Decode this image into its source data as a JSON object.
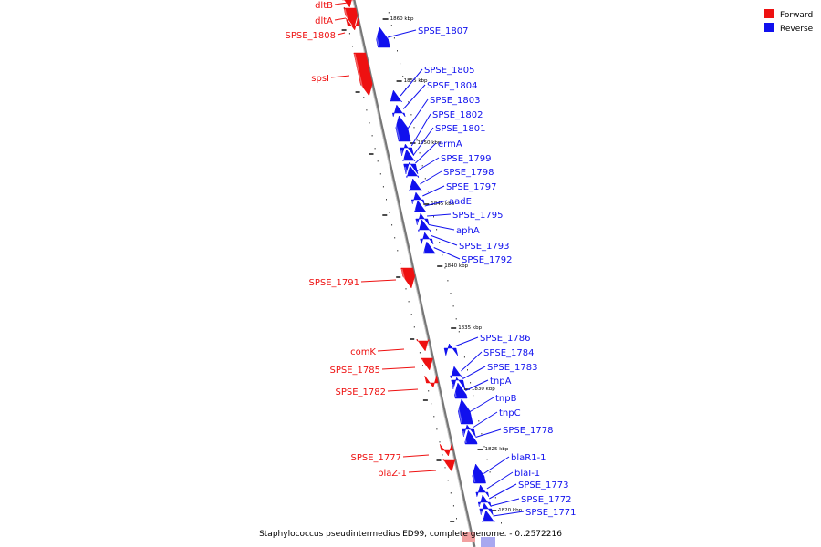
{
  "legend": {
    "forward_label": "Forward",
    "reverse_label": "Reverse",
    "forward_color": "#ee1111",
    "reverse_color": "#1111ee"
  },
  "caption": "Staphylococcus pseudintermedius ED99, complete genome. - 0..2572216",
  "ticks": [
    "1860 kbp",
    "1855 kbp",
    "1850 kbp",
    "1845 kbp",
    "1840 kbp",
    "1835 kbp",
    "1830 kbp",
    "1825 kbp",
    "1820 kbp"
  ],
  "forward_labels": [
    "dltB",
    "dltA",
    "SPSE_1808",
    "spsI",
    "SPSE_1791",
    "comK",
    "SPSE_1785",
    "SPSE_1782",
    "SPSE_1777",
    "blaZ-1"
  ],
  "reverse_labels": [
    "SPSE_1807",
    "SPSE_1805",
    "SPSE_1804",
    "SPSE_1803",
    "SPSE_1802",
    "SPSE_1801",
    "ermA",
    "SPSE_1799",
    "SPSE_1798",
    "SPSE_1797",
    "aadE",
    "SPSE_1795",
    "aphA",
    "SPSE_1793",
    "SPSE_1792",
    "SPSE_1786",
    "SPSE_1784",
    "SPSE_1783",
    "tnpA",
    "tnpB",
    "tnpC",
    "SPSE_1778",
    "blaR1-1",
    "blaI-1",
    "SPSE_1773",
    "SPSE_1772",
    "SPSE_1771"
  ]
}
